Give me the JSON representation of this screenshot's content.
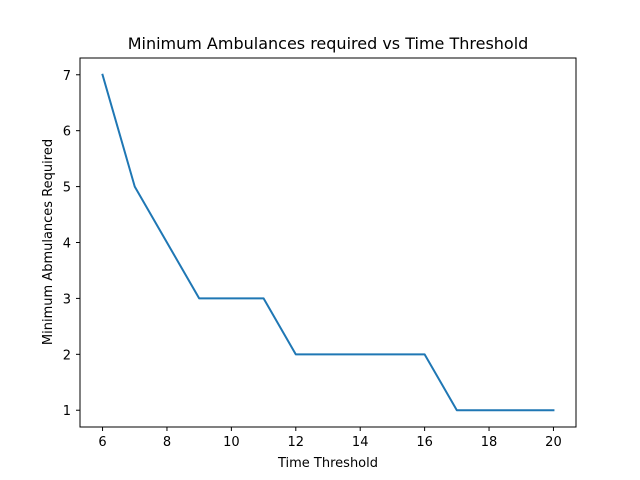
{
  "chart_data": {
    "type": "line",
    "title": "Minimum Ambulances required vs Time Threshold",
    "xlabel": "Time Threshold",
    "ylabel": "Minimum Abmulances Required",
    "xlim": [
      5.3,
      20.7
    ],
    "ylim": [
      0.7,
      7.3
    ],
    "xticks": [
      6,
      8,
      10,
      12,
      14,
      16,
      18,
      20
    ],
    "yticks": [
      1,
      2,
      3,
      4,
      5,
      6,
      7
    ],
    "grid": false,
    "series": [
      {
        "color": "#1f77b4",
        "x": [
          6,
          7,
          8,
          9,
          10,
          11,
          12,
          13,
          14,
          15,
          16,
          17,
          18,
          19,
          20
        ],
        "y": [
          7,
          5,
          4,
          3,
          3,
          3,
          2,
          2,
          2,
          2,
          2,
          1,
          1,
          1,
          1
        ]
      }
    ]
  }
}
